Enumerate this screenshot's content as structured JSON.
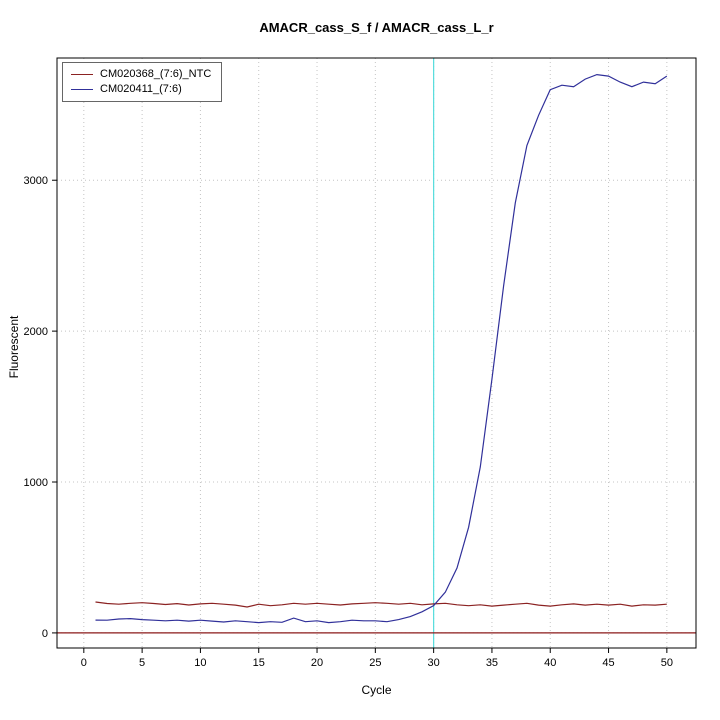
{
  "title": "AMACR_cass_S_f / AMACR_cass_L_r",
  "chart_data": {
    "type": "line",
    "title": "AMACR_cass_S_f / AMACR_cass_L_r",
    "xlabel": "Cycle",
    "ylabel": "Fluorescent",
    "xlim": [
      -2.3,
      52.5
    ],
    "ylim": [
      -100,
      3810
    ],
    "x_ticks": [
      0,
      5,
      10,
      15,
      20,
      25,
      30,
      35,
      40,
      45,
      50
    ],
    "y_ticks": [
      0,
      1000,
      2000,
      3000
    ],
    "grid": true,
    "grid_color": "#c4c4c4",
    "legend_position": "top-left",
    "threshold_line": {
      "x": 30,
      "color": "#55dddd"
    },
    "baseline": {
      "y": 0,
      "color": "#8b1a1a"
    },
    "x": [
      1,
      2,
      3,
      4,
      5,
      6,
      7,
      8,
      9,
      10,
      11,
      12,
      13,
      14,
      15,
      16,
      17,
      18,
      19,
      20,
      21,
      22,
      23,
      24,
      25,
      26,
      27,
      28,
      29,
      30,
      31,
      32,
      33,
      34,
      35,
      36,
      37,
      38,
      39,
      40,
      41,
      42,
      43,
      44,
      45,
      46,
      47,
      48,
      49,
      50
    ],
    "series": [
      {
        "name": "CM020368_(7:6)_NTC",
        "color": "#8b2222",
        "values": [
          205,
          195,
          190,
          196,
          200,
          195,
          188,
          194,
          185,
          192,
          196,
          190,
          184,
          172,
          190,
          180,
          186,
          196,
          190,
          196,
          190,
          185,
          192,
          196,
          200,
          196,
          190,
          196,
          186,
          192,
          196,
          186,
          180,
          186,
          178,
          184,
          190,
          196,
          184,
          178,
          186,
          192,
          184,
          190,
          184,
          190,
          178,
          186,
          184,
          190
        ]
      },
      {
        "name": "CM020411_(7:6)",
        "color": "#30309a",
        "values": [
          85,
          84,
          92,
          95,
          88,
          84,
          80,
          84,
          78,
          84,
          78,
          72,
          80,
          74,
          68,
          74,
          70,
          98,
          74,
          80,
          68,
          74,
          84,
          80,
          80,
          74,
          88,
          108,
          140,
          180,
          270,
          430,
          700,
          1100,
          1680,
          2300,
          2850,
          3230,
          3430,
          3600,
          3630,
          3620,
          3670,
          3700,
          3690,
          3650,
          3620,
          3650,
          3640,
          3690
        ]
      }
    ]
  }
}
